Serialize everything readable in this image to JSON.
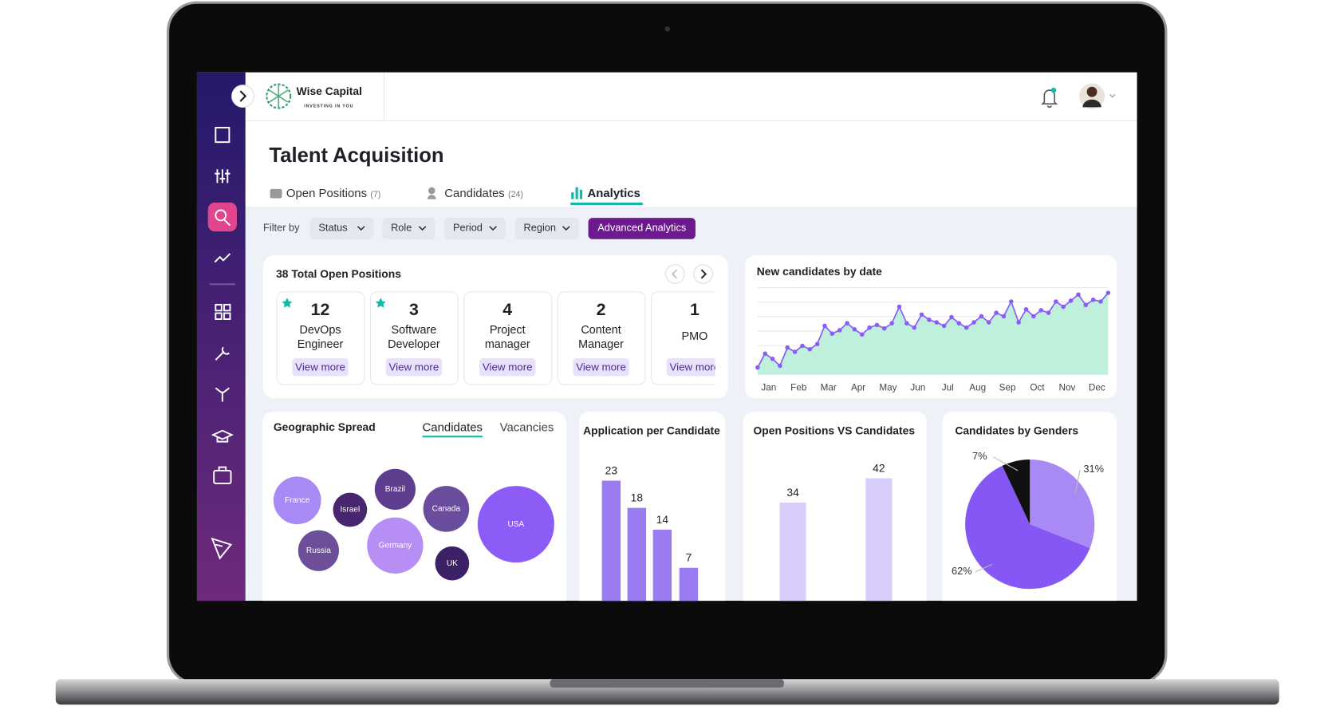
{
  "brand": {
    "name": "Wise Capital",
    "tagline": "INVESTING IN YOU"
  },
  "page_title": "Talent Acquisition",
  "tabs": [
    {
      "label": "Open Positions",
      "count": "(7)"
    },
    {
      "label": "Candidates",
      "count": "(24)"
    },
    {
      "label": "Analytics"
    }
  ],
  "filter_label": "Filter by",
  "filters": [
    "Status",
    "Role",
    "Period",
    "Region"
  ],
  "advanced_button": "Advanced Analytics",
  "positions": {
    "title": "38 Total Open Positions",
    "cards": [
      {
        "count": 12,
        "role": "DevOps Engineer",
        "action": "View more",
        "starred": true
      },
      {
        "count": 3,
        "role": "Software Developer",
        "action": "View more",
        "starred": true
      },
      {
        "count": 4,
        "role": "Project manager",
        "action": "View more",
        "starred": false
      },
      {
        "count": 2,
        "role": "Content Manager",
        "action": "View more",
        "starred": false
      },
      {
        "count": 1,
        "role": "PMO",
        "action": "View more",
        "starred": false
      }
    ]
  },
  "chart_data": [
    {
      "type": "line",
      "title": "New candidates by date",
      "color": "#8b5cf6",
      "area_color": "#bff0dc",
      "x": [
        1,
        2,
        3,
        4,
        5,
        6,
        7,
        8,
        9,
        10,
        11,
        12,
        13,
        14,
        15,
        16,
        17,
        18,
        19,
        20,
        21,
        22,
        23,
        24,
        25,
        26,
        27,
        28,
        29,
        30,
        31,
        32,
        33,
        34,
        35,
        36,
        37,
        38,
        39,
        40,
        41,
        42,
        43,
        44,
        45,
        46,
        47,
        48
      ],
      "values": [
        8,
        24,
        18,
        10,
        31,
        26,
        33,
        29,
        35,
        56,
        47,
        51,
        59,
        52,
        46,
        54,
        57,
        53,
        59,
        78,
        59,
        54,
        69,
        63,
        60,
        56,
        66,
        59,
        54,
        60,
        67,
        60,
        71,
        67,
        84,
        60,
        75,
        67,
        74,
        71,
        84,
        78,
        85,
        92,
        80,
        86,
        84,
        94
      ],
      "xlim": [
        1,
        48
      ],
      "ylim": [
        0,
        100
      ],
      "xticks": [
        {
          "value": 2.5,
          "label": "Jan"
        },
        {
          "value": 6.5,
          "label": "Feb"
        },
        {
          "value": 10.5,
          "label": "Mar"
        },
        {
          "value": 14.5,
          "label": "Apr"
        },
        {
          "value": 18.5,
          "label": "May"
        },
        {
          "value": 22.5,
          "label": "Jun"
        },
        {
          "value": 26.5,
          "label": "Jul"
        },
        {
          "value": 30.5,
          "label": "Aug"
        },
        {
          "value": 34.5,
          "label": "Sep"
        },
        {
          "value": 38.5,
          "label": "Oct"
        },
        {
          "value": 42.5,
          "label": "Nov"
        },
        {
          "value": 46.5,
          "label": "Dec"
        }
      ]
    },
    {
      "type": "bubble",
      "title": "Geographic Spread",
      "toggles": [
        "Candidates",
        "Vacancies"
      ],
      "categories": [
        "France",
        "Israel",
        "Brazil",
        "Canada",
        "USA",
        "Russia",
        "Germany",
        "UK"
      ],
      "values": [
        28,
        20,
        24,
        27,
        45,
        24,
        33,
        20
      ],
      "colors": [
        "#a98af5",
        "#47266f",
        "#5d3d8e",
        "#6a4d9c",
        "#8b5cf6",
        "#6c4f98",
        "#b78ef4",
        "#3d2166"
      ]
    },
    {
      "type": "bar",
      "title": "Application per Candidate",
      "values": [
        23,
        18,
        14,
        7
      ],
      "color": "#9a7bf2",
      "ylim": [
        0,
        25
      ]
    },
    {
      "type": "bar",
      "title": "Open Positions VS Candidates",
      "values": [
        34,
        42
      ],
      "color": "#d9cdfb",
      "ylim": [
        0,
        42
      ]
    },
    {
      "type": "pie",
      "title": "Candidates by Genders",
      "values": [
        31,
        62,
        7
      ],
      "value_labels": [
        "31%",
        "62%",
        "7%"
      ],
      "colors": [
        "#a98af5",
        "#8557f5",
        "#111111"
      ]
    }
  ]
}
